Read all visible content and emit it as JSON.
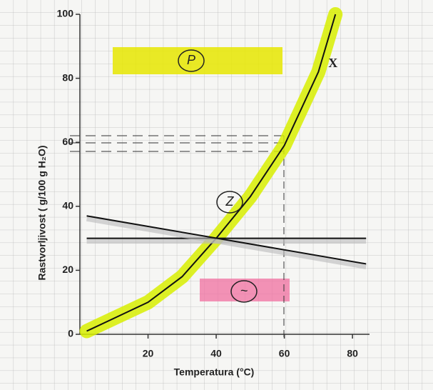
{
  "chart_data": {
    "type": "line",
    "xlabel": "Temperatura (°C)",
    "ylabel": "Rastvorljivost ( g/100 g H₂O)",
    "xlim": [
      0,
      85
    ],
    "ylim": [
      0,
      100
    ],
    "xticks": [
      20,
      40,
      60,
      80
    ],
    "yticks": [
      0,
      20,
      40,
      60,
      80,
      100
    ],
    "grid": true,
    "series": [
      {
        "name": "X",
        "color": "#111111",
        "x": [
          2,
          10,
          20,
          30,
          40,
          50,
          60,
          70,
          75
        ],
        "values": [
          1,
          5,
          10,
          18,
          30,
          43,
          59,
          82,
          100
        ]
      },
      {
        "color": "#111111",
        "x": [
          2,
          84
        ],
        "values": [
          30,
          30
        ]
      },
      {
        "color": "#111111",
        "x": [
          2,
          84
        ],
        "values": [
          37,
          22
        ]
      }
    ],
    "annotations": [
      "P",
      "Z",
      "~"
    ]
  }
}
